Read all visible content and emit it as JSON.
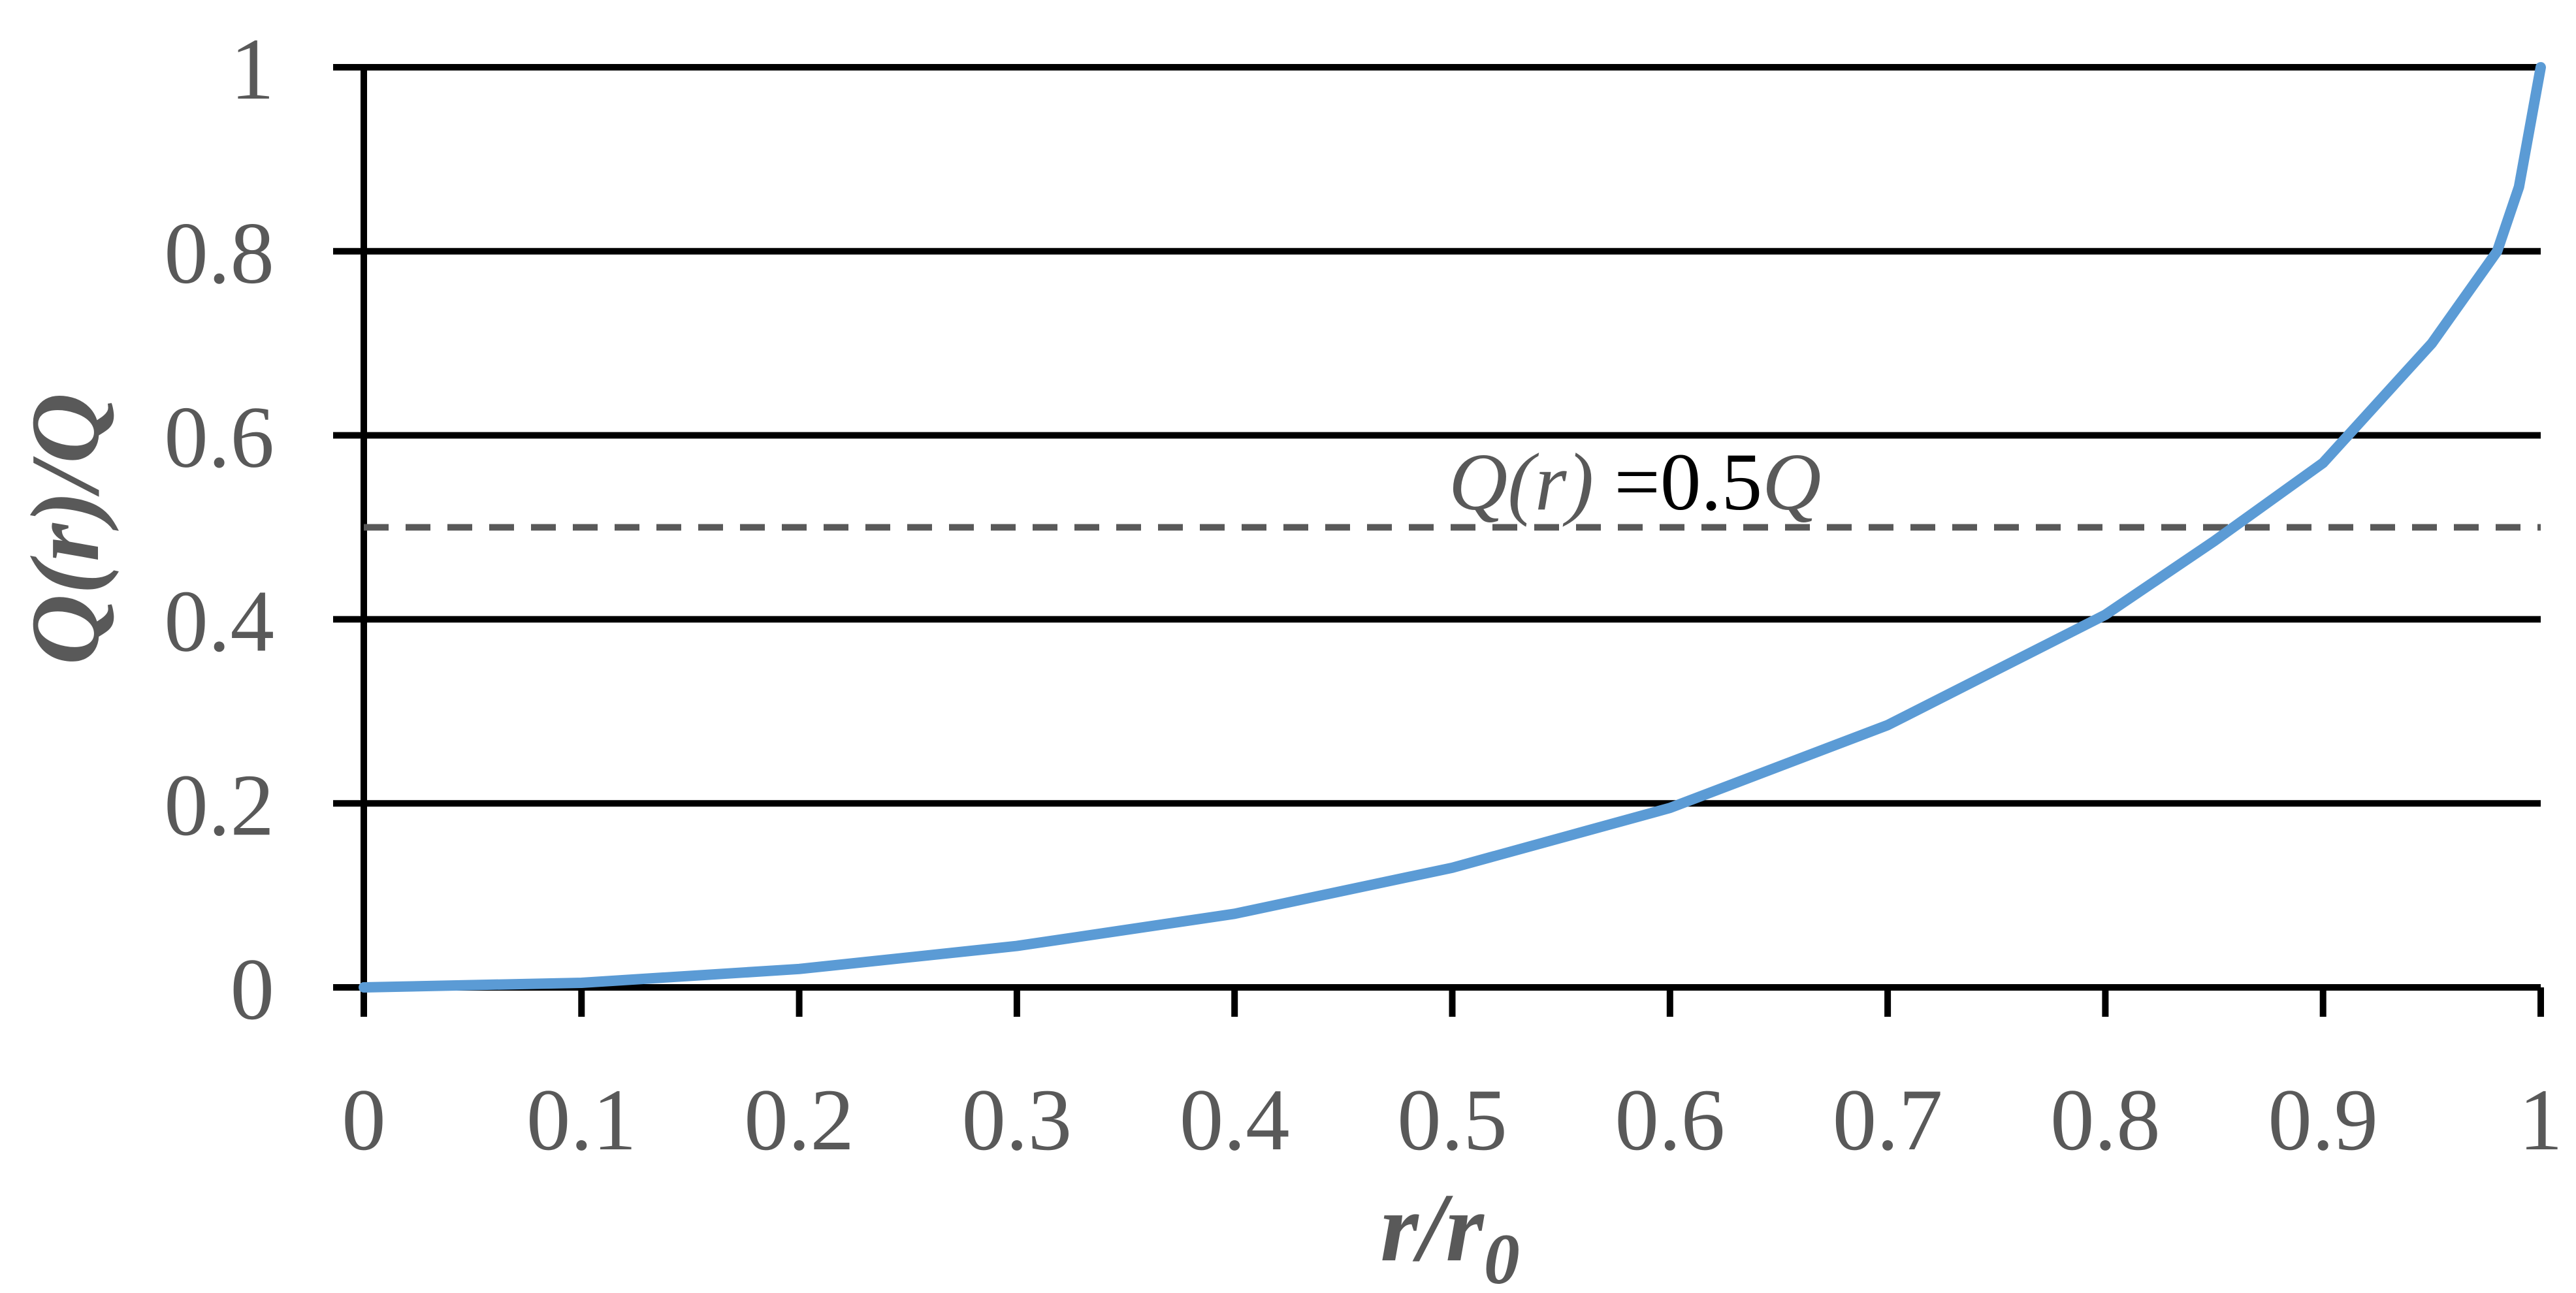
{
  "chart_data": {
    "type": "line",
    "title": "",
    "xlabel": {
      "main": "r/r",
      "subscript": "0"
    },
    "ylabel": "Q(r)/Q",
    "xlim": [
      0,
      1
    ],
    "ylim": [
      0,
      1
    ],
    "x_ticks": [
      "0",
      "0.1",
      "0.2",
      "0.3",
      "0.4",
      "0.5",
      "0.6",
      "0.7",
      "0.8",
      "0.9",
      "1"
    ],
    "y_ticks": [
      "0",
      "0.2",
      "0.4",
      "0.6",
      "0.8",
      "1"
    ],
    "grid": {
      "horizontal": true,
      "vertical": false
    },
    "legend": "none",
    "series": [
      {
        "color": "#5b9bd5",
        "x": [
          0,
          0.1,
          0.2,
          0.3,
          0.4,
          0.5,
          0.6,
          0.7,
          0.8,
          0.85,
          0.9,
          0.95,
          0.98,
          0.99,
          1.0
        ],
        "y": [
          0,
          0.005,
          0.02,
          0.045,
          0.08,
          0.13,
          0.195,
          0.285,
          0.405,
          0.485,
          0.57,
          0.7,
          0.8,
          0.87,
          1.0
        ]
      }
    ],
    "reference_line": {
      "y": 0.5,
      "style": "dashed",
      "color": "#595959",
      "label": {
        "italic_part": "Q(r)",
        "normal_part": " =0.5",
        "suffix_italic": "Q"
      }
    }
  }
}
